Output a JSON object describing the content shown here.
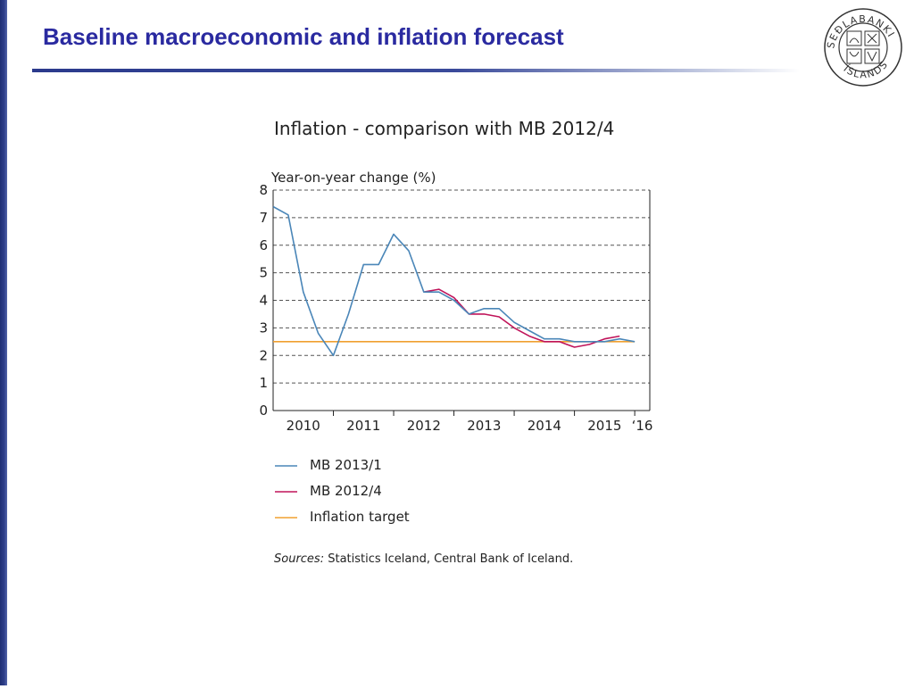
{
  "slide": {
    "title": "Baseline macroeconomic and inflation forecast",
    "logo_text": "SEÐLABANKI ÍSLANDS"
  },
  "colors": {
    "title": "#2a2aa0",
    "mb2013": "#4a86b8",
    "mb2012": "#c0145a",
    "target": "#f0a030",
    "grid": "#555555"
  },
  "sources": {
    "label": "Sources:",
    "text": "Statistics Iceland, Central Bank of Iceland."
  },
  "chart_data": {
    "type": "line",
    "title": "Inflation - comparison with MB 2012/4",
    "ylabel": "Year-on-year change (%)",
    "xlabel": "",
    "ylim": [
      0,
      8
    ],
    "yticks": [
      "0",
      "1",
      "2",
      "3",
      "4",
      "5",
      "6",
      "7",
      "8"
    ],
    "x_tick_labels": [
      "2010",
      "2011",
      "2012",
      "2013",
      "2014",
      "2015",
      "‘16"
    ],
    "xlim": [
      2010.0,
      2016.25
    ],
    "grid": true,
    "legend_position": "bottom",
    "series": [
      {
        "name": "MB 2013/1",
        "color": "#4a86b8",
        "x": [
          2010.0,
          2010.25,
          2010.5,
          2010.75,
          2011.0,
          2011.25,
          2011.5,
          2011.75,
          2012.0,
          2012.25,
          2012.5,
          2012.75,
          2013.0,
          2013.25,
          2013.5,
          2013.75,
          2014.0,
          2014.25,
          2014.5,
          2014.75,
          2015.0,
          2015.25,
          2015.5,
          2015.75,
          2016.0
        ],
        "y": [
          7.4,
          7.1,
          4.3,
          2.8,
          2.0,
          3.5,
          5.3,
          5.3,
          6.4,
          5.8,
          4.3,
          4.3,
          4.0,
          3.5,
          3.7,
          3.7,
          3.2,
          2.9,
          2.6,
          2.6,
          2.5,
          2.5,
          2.5,
          2.6,
          2.5
        ]
      },
      {
        "name": "MB 2012/4",
        "color": "#c0145a",
        "x": [
          2012.5,
          2012.75,
          2013.0,
          2013.25,
          2013.5,
          2013.75,
          2014.0,
          2014.25,
          2014.5,
          2014.75,
          2015.0,
          2015.25,
          2015.5,
          2015.75
        ],
        "y": [
          4.3,
          4.4,
          4.1,
          3.5,
          3.5,
          3.4,
          3.0,
          2.7,
          2.5,
          2.5,
          2.3,
          2.4,
          2.6,
          2.7
        ]
      },
      {
        "name": "Inflation target",
        "color": "#f0a030",
        "x": [
          2010.0,
          2016.0
        ],
        "y": [
          2.5,
          2.5
        ]
      }
    ]
  }
}
